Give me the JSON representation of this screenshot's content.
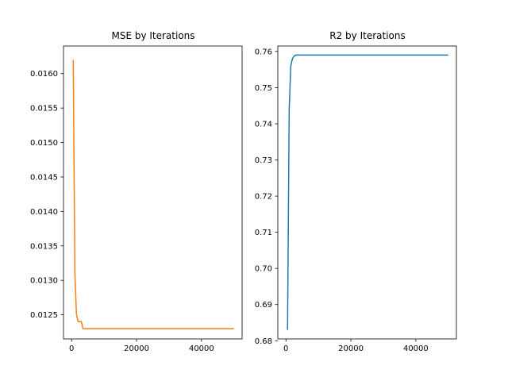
{
  "chart_data": [
    {
      "type": "line",
      "title": "MSE by Iterations",
      "xlabel": "",
      "ylabel": "",
      "xlim": [
        -2500,
        52500
      ],
      "ylim": [
        0.01215,
        0.0164
      ],
      "xticks": [
        0,
        20000,
        40000
      ],
      "xtick_labels": [
        "0",
        "20000",
        "40000"
      ],
      "yticks": [
        0.0125,
        0.013,
        0.0135,
        0.014,
        0.0145,
        0.015,
        0.0155,
        0.016
      ],
      "ytick_labels": [
        "0.0125",
        "0.0130",
        "0.0135",
        "0.0140",
        "0.0145",
        "0.0150",
        "0.0155",
        "0.0160"
      ],
      "grid": false,
      "color": "#ff7f0e",
      "series": [
        {
          "x": [
            500,
            1000,
            1500,
            2000,
            2500,
            3000,
            3500,
            4000,
            5000,
            10000,
            20000,
            30000,
            40000,
            50000
          ],
          "y": [
            0.0162,
            0.0131,
            0.0125,
            0.0124,
            0.0124,
            0.0124,
            0.0123,
            0.0123,
            0.0123,
            0.0123,
            0.0123,
            0.0123,
            0.0123,
            0.0123
          ]
        }
      ]
    },
    {
      "type": "line",
      "title": "R2 by Iterations",
      "xlabel": "",
      "ylabel": "",
      "xlim": [
        -2500,
        52500
      ],
      "ylim": [
        0.6805,
        0.7615
      ],
      "xticks": [
        0,
        20000,
        40000
      ],
      "xtick_labels": [
        "0",
        "20000",
        "40000"
      ],
      "yticks": [
        0.68,
        0.69,
        0.7,
        0.71,
        0.72,
        0.73,
        0.74,
        0.75,
        0.76
      ],
      "ytick_labels": [
        "0.68",
        "0.69",
        "0.70",
        "0.71",
        "0.72",
        "0.73",
        "0.74",
        "0.75",
        "0.76"
      ],
      "grid": false,
      "color": "#1f77b4",
      "series": [
        {
          "x": [
            500,
            1000,
            1500,
            2000,
            2500,
            3000,
            4000,
            5000,
            10000,
            20000,
            30000,
            40000,
            50000
          ],
          "y": [
            0.683,
            0.744,
            0.756,
            0.758,
            0.7587,
            0.759,
            0.759,
            0.759,
            0.759,
            0.759,
            0.759,
            0.759,
            0.759
          ]
        }
      ]
    }
  ]
}
